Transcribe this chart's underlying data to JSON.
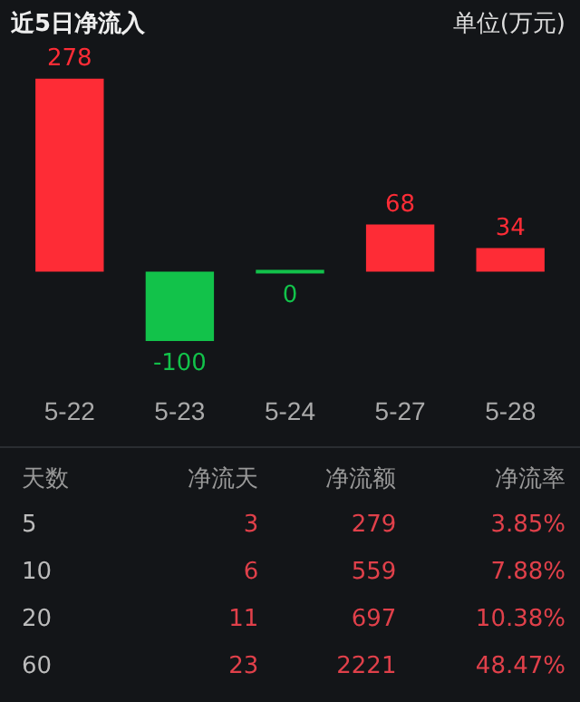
{
  "chart_data": {
    "type": "bar",
    "title": "近5日净流入",
    "subtitle": "单位(万元)",
    "categories": [
      "5-22",
      "5-23",
      "5-24",
      "5-27",
      "5-28"
    ],
    "values": [
      278,
      -100,
      0,
      68,
      34
    ],
    "colors": [
      "#fe2c36",
      "#12c24a",
      "#12c24a",
      "#fe2c36",
      "#fe2c36"
    ],
    "data_labels": true,
    "legend": false,
    "annotations": [
      "天数",
      "净流天",
      "净流额",
      "净流率",
      "5",
      "3",
      "279",
      "3.85%",
      "10",
      "6",
      "559",
      "7.88%",
      "20",
      "11",
      "697",
      "10.38%",
      "60",
      "23",
      "2221",
      "48.47%"
    ]
  }
}
